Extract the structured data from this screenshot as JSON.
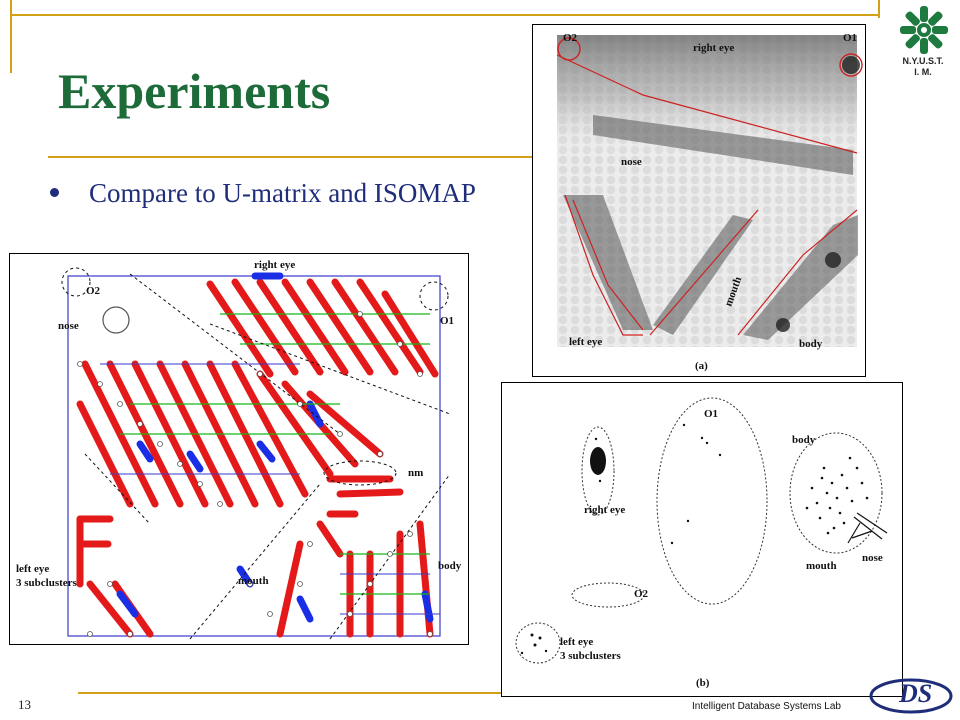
{
  "slide": {
    "title": "Experiments",
    "bullet": "Compare to U-matrix and ISOMAP",
    "page_number": "13",
    "footer": "Intelligent Database Systems Lab",
    "logo_text_line1": "N.Y.U.S.T.",
    "logo_text_line2": "I. M."
  },
  "figure_left": {
    "labels": {
      "right_eye": "right eye",
      "o2": "O2",
      "o1": "O1",
      "nose": "nose",
      "nm": "nm",
      "left_eye": "left eye",
      "subclusters": "3 subclusters",
      "mouth": "mouth",
      "body": "body"
    }
  },
  "figure_a": {
    "labels": {
      "o2": "O2",
      "o1": "O1",
      "right_eye": "right eye",
      "nose": "nose",
      "mouth": "mouth",
      "left_eye": "left eye",
      "body": "body",
      "caption": "(a)"
    }
  },
  "figure_b": {
    "labels": {
      "o1": "O1",
      "body": "body",
      "right_eye": "right eye",
      "nose": "nose",
      "mouth": "mouth",
      "o2": "O2",
      "left_eye": "left eye",
      "subclusters": "3 subclusters",
      "caption": "(b)"
    }
  },
  "colors": {
    "title_green": "#1e6b3a",
    "text_blue": "#1f2d7a",
    "accent_gold": "#d4a017"
  }
}
